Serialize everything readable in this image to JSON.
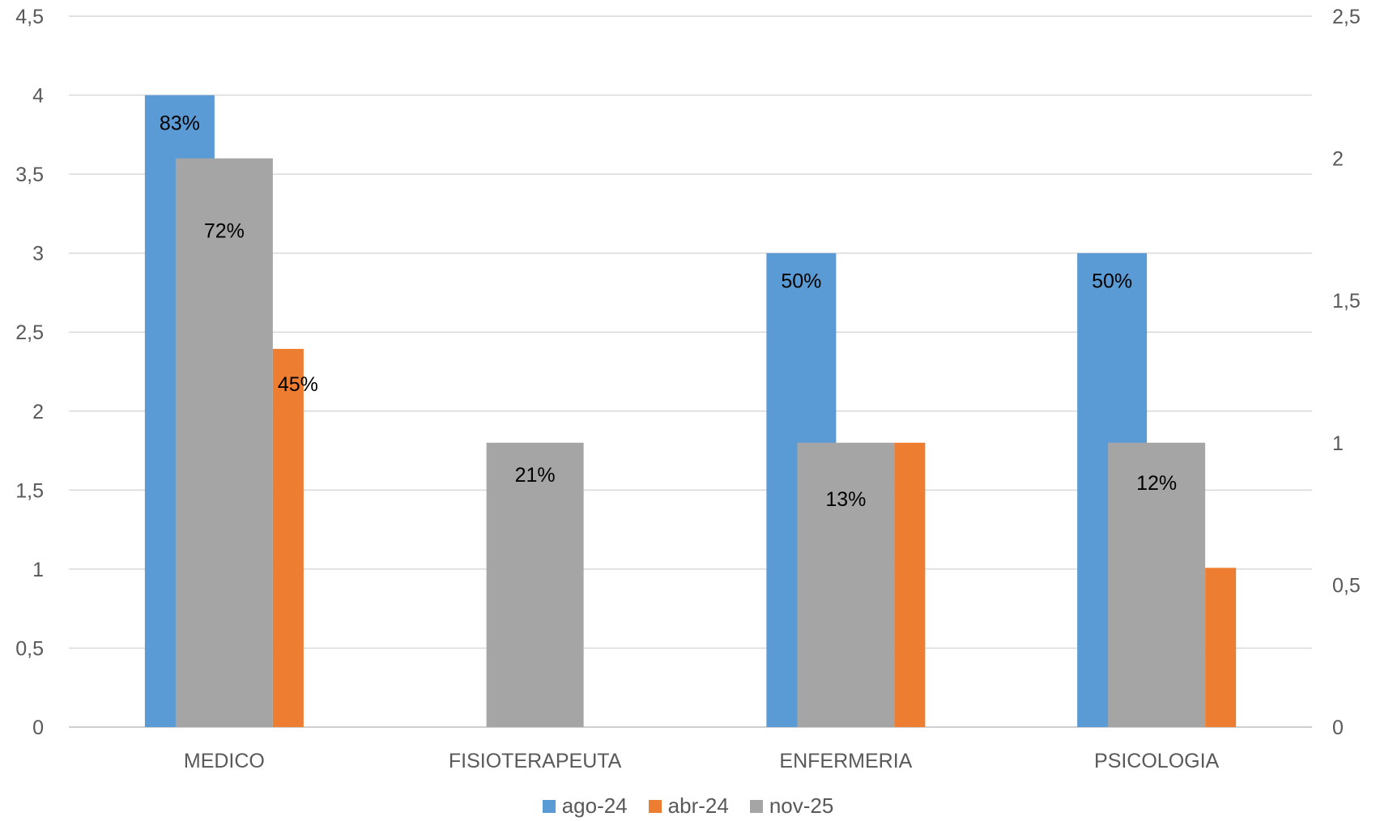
{
  "chart_data": {
    "type": "bar",
    "categories": [
      "MEDICO",
      "FISIOTERAPEUTA",
      "ENFERMERIA",
      "PSICOLOGIA"
    ],
    "primary_axis": {
      "ylim": [
        0,
        4.5
      ],
      "ticks": [
        "0",
        "0,5",
        "1",
        "1,5",
        "2",
        "2,5",
        "3",
        "3,5",
        "4",
        "4,5"
      ]
    },
    "secondary_axis": {
      "ylim": [
        0,
        2.5
      ],
      "ticks": [
        "0",
        "0,5",
        "1",
        "1,5",
        "2",
        "2,5"
      ]
    },
    "grid": true,
    "legend_position": "bottom",
    "series": [
      {
        "name": "ago-24",
        "color": "#5B9BD5",
        "axis": "primary",
        "values": [
          4,
          0,
          3,
          3
        ],
        "labels": [
          "83%",
          "",
          "50%",
          "50%"
        ]
      },
      {
        "name": "nov-25",
        "color": "#A5A5A5",
        "axis": "secondary",
        "values": [
          2,
          1,
          1,
          1
        ],
        "labels": [
          "72%",
          "21%",
          "13%",
          "12%"
        ]
      },
      {
        "name": "abr-24",
        "color": "#ED7D31",
        "axis": "secondary",
        "values": [
          1.33,
          0,
          1,
          0.56
        ],
        "labels": [
          "45%",
          "",
          "",
          ""
        ]
      }
    ],
    "legend": [
      {
        "name": "ago-24",
        "color": "#5B9BD5"
      },
      {
        "name": "abr-24",
        "color": "#ED7D31"
      },
      {
        "name": "nov-25",
        "color": "#A5A5A5"
      }
    ]
  }
}
